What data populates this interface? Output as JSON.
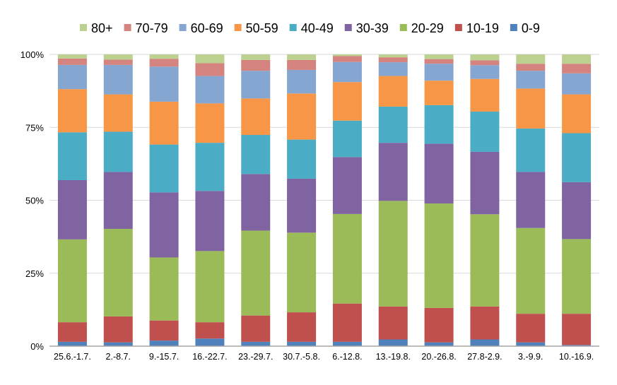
{
  "chart_data": {
    "type": "bar",
    "stacked": true,
    "percent": true,
    "title": "",
    "xlabel": "",
    "ylabel": "",
    "ylim": [
      0,
      100
    ],
    "yticks": [
      "0%",
      "25%",
      "50%",
      "75%",
      "100%"
    ],
    "grid": true,
    "legend_position": "top",
    "categories": [
      "25.6.-1.7.",
      "2.-8.7.",
      "9.-15.7.",
      "16.-22.7.",
      "23.-29.7.",
      "30.7.-5.8.",
      "6.-12.8.",
      "13.-19.8.",
      "20.-26.8.",
      "27.8-2.9.",
      "3.-9.9.",
      "10.-16.9."
    ],
    "series": [
      {
        "name": "0-9",
        "color": "#4f81bd",
        "values": [
          1.5,
          1.3,
          1.9,
          2.6,
          1.5,
          1.5,
          1.5,
          2.3,
          1.3,
          2.3,
          1.3,
          0.4
        ]
      },
      {
        "name": "10-19",
        "color": "#c0504d",
        "values": [
          6.7,
          8.9,
          6.9,
          5.6,
          9.0,
          10.1,
          13.1,
          11.3,
          11.8,
          11.3,
          9.8,
          10.7
        ]
      },
      {
        "name": "20-29",
        "color": "#9bbb59",
        "values": [
          28.4,
          30.0,
          21.6,
          24.4,
          29.1,
          27.3,
          30.7,
          36.2,
          35.8,
          31.6,
          29.4,
          25.6
        ]
      },
      {
        "name": "30-39",
        "color": "#8064a2",
        "values": [
          20.3,
          19.5,
          22.3,
          20.6,
          19.4,
          18.5,
          19.5,
          19.9,
          20.5,
          21.4,
          19.2,
          19.5
        ]
      },
      {
        "name": "40-49",
        "color": "#4bacc6",
        "values": [
          16.4,
          13.8,
          16.4,
          16.5,
          13.4,
          13.4,
          12.5,
          12.4,
          13.2,
          13.8,
          14.9,
          16.8
        ]
      },
      {
        "name": "50-59",
        "color": "#f79646",
        "values": [
          14.8,
          12.8,
          14.7,
          13.5,
          12.5,
          15.8,
          13.2,
          10.5,
          8.4,
          11.2,
          13.7,
          13.3
        ]
      },
      {
        "name": "60-69",
        "color": "#84a6d0",
        "values": [
          8.3,
          10.1,
          12.0,
          9.4,
          9.5,
          8.1,
          6.9,
          4.7,
          5.8,
          4.7,
          6.1,
          7.2
        ]
      },
      {
        "name": "70-79",
        "color": "#d4837e",
        "values": [
          2.2,
          1.8,
          2.7,
          4.4,
          3.7,
          3.4,
          2.0,
          1.7,
          1.6,
          1.7,
          2.4,
          3.3
        ]
      },
      {
        "name": "80+",
        "color": "#bcd18f",
        "values": [
          1.4,
          1.8,
          1.5,
          3.0,
          1.9,
          1.9,
          0.6,
          1.0,
          1.6,
          2.0,
          3.2,
          3.2
        ]
      }
    ]
  }
}
